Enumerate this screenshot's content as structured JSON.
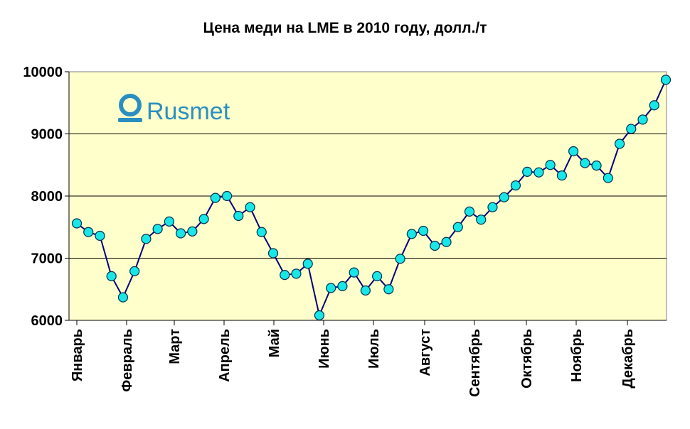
{
  "chart_data": {
    "type": "line",
    "title": "Цена меди на LME в 2010 году, долл./т",
    "xlabel": "",
    "ylabel": "",
    "ylim": [
      6000,
      10000
    ],
    "yticks": [
      6000,
      7000,
      8000,
      9000,
      10000
    ],
    "grid": true,
    "month_labels": [
      "Январь",
      "Февраль",
      "Март",
      "Апрель",
      "Май",
      "Июнь",
      "Июль",
      "Август",
      "Сентябрь",
      "Октябрь",
      "Ноябрь",
      "Декабрь"
    ],
    "values": [
      7560,
      7420,
      7360,
      6710,
      6370,
      6790,
      7310,
      7470,
      7590,
      7400,
      7430,
      7630,
      7970,
      8000,
      7680,
      7820,
      7420,
      7080,
      6730,
      6750,
      6910,
      6080,
      6520,
      6550,
      6770,
      6480,
      6710,
      6500,
      6990,
      7390,
      7440,
      7200,
      7260,
      7500,
      7750,
      7620,
      7820,
      7980,
      8170,
      8390,
      8380,
      8500,
      8330,
      8720,
      8530,
      8490,
      8290,
      8840,
      9080,
      9230,
      9460,
      9870
    ],
    "colors": {
      "line": "#00007a",
      "marker_fill": "#19e6e6",
      "marker_stroke": "#003050",
      "plot_bg": "#ffffcc",
      "grid": "#000000"
    }
  },
  "logo": {
    "text": "Rusmet",
    "icon": "rusmet-logo-icon"
  }
}
